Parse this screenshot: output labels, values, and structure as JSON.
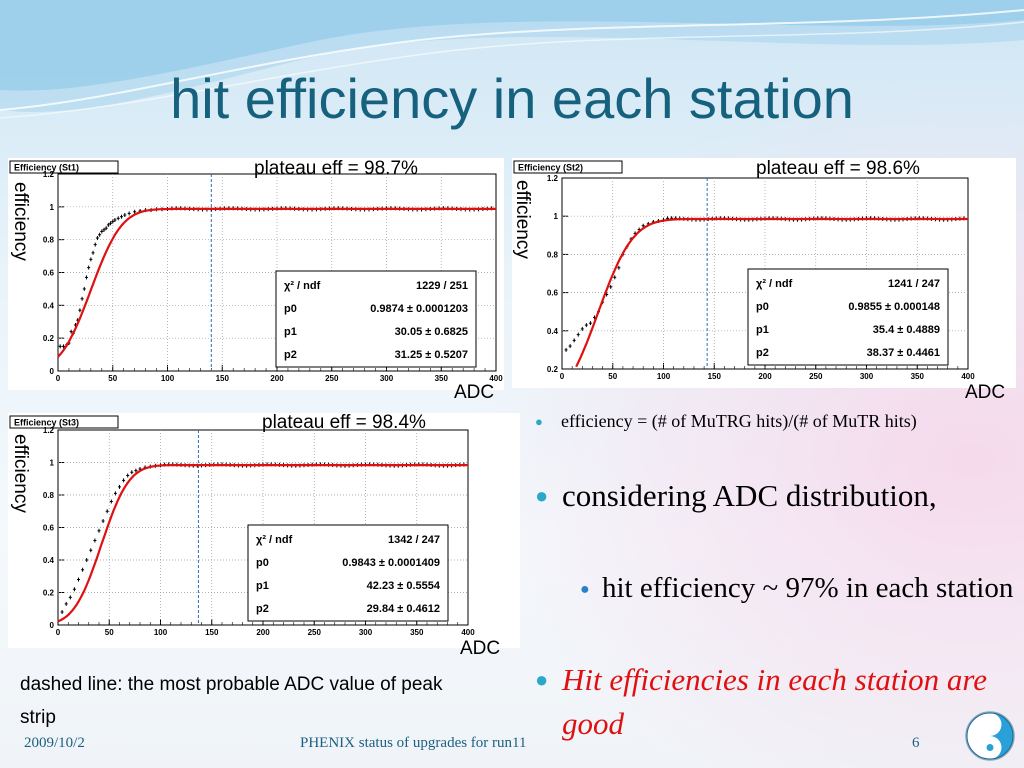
{
  "slide": {
    "title": "hit efficiency in each station",
    "note": "dashed line: the most probable ADC value of peak strip",
    "bullets": [
      "efficiency = (# of MuTRG hits)/(# of MuTR hits)",
      "considering ADC distribution,",
      "hit efficiency ~ 97% in each station",
      "Hit efficiencies in each station are good"
    ],
    "footer": {
      "date": "2009/10/2",
      "center": "PHENIX status of upgrades for run11",
      "page": "6"
    },
    "colors": {
      "title": "#16617e",
      "fit": "#e01010",
      "bullet": "#2aa8c9",
      "emphasis": "#e01010"
    }
  },
  "chart_data": [
    {
      "type": "scatter",
      "title": "Efficiency (St1)",
      "plateau_label": "plateau eff = 98.7%",
      "xlabel": "ADC",
      "ylabel": "efficiency",
      "xlim": [
        0,
        400
      ],
      "ylim": [
        0,
        1.2
      ],
      "xticks": [
        "0",
        "50",
        "100",
        "150",
        "200",
        "250",
        "300",
        "350",
        "400"
      ],
      "yticks": [
        "0",
        "0.2",
        "0.4",
        "0.6",
        "0.8",
        "1",
        "1.2"
      ],
      "dashed_x": 140,
      "stats": [
        [
          "χ² / ndf",
          "1229 / 251"
        ],
        [
          "p0",
          "0.9874 ± 0.0001203"
        ],
        [
          "p1",
          "30.05 ± 0.6825"
        ],
        [
          "p2",
          "31.25 ± 0.5207"
        ]
      ],
      "fit": {
        "p0": 0.9874,
        "p1": 30.05,
        "p2": 31.25
      },
      "points": {
        "x": [
          2,
          5,
          8,
          10,
          12,
          14,
          16,
          18,
          20,
          22,
          24,
          26,
          28,
          30,
          32,
          34,
          36,
          38,
          40,
          42,
          44,
          46,
          48,
          50,
          52,
          55,
          58,
          61,
          65,
          70,
          75,
          80,
          85,
          90,
          95,
          100
        ],
        "y": [
          0.15,
          0.15,
          0.16,
          0.17,
          0.24,
          0.23,
          0.28,
          0.31,
          0.37,
          0.44,
          0.5,
          0.57,
          0.63,
          0.68,
          0.72,
          0.77,
          0.81,
          0.83,
          0.85,
          0.86,
          0.87,
          0.89,
          0.9,
          0.91,
          0.92,
          0.93,
          0.94,
          0.95,
          0.96,
          0.97,
          0.975,
          0.98,
          0.98,
          0.985,
          0.985,
          0.987
        ]
      }
    },
    {
      "type": "scatter",
      "title": "Efficiency (St2)",
      "plateau_label": "plateau eff = 98.6%",
      "xlabel": "ADC",
      "ylabel": "efficiency",
      "xlim": [
        0,
        400
      ],
      "ylim": [
        0.2,
        1.2
      ],
      "xticks": [
        "0",
        "50",
        "100",
        "150",
        "200",
        "250",
        "300",
        "350",
        "400"
      ],
      "yticks": [
        "0.2",
        "0.4",
        "0.6",
        "0.8",
        "1",
        "1.2"
      ],
      "dashed_x": 143,
      "stats": [
        [
          "χ² / ndf",
          "1241 / 247"
        ],
        [
          "p0",
          "0.9855 ± 0.000148"
        ],
        [
          "p1",
          "35.4 ± 0.4889"
        ],
        [
          "p2",
          "38.37 ± 0.4461"
        ]
      ],
      "fit": {
        "p0": 0.9855,
        "p1": 35.4,
        "p2": 38.37
      },
      "points": {
        "x": [
          4,
          8,
          12,
          16,
          20,
          24,
          28,
          32,
          36,
          40,
          44,
          48,
          52,
          56,
          60,
          64,
          68,
          72,
          76,
          80,
          85,
          90,
          95,
          100
        ],
        "y": [
          0.3,
          0.32,
          0.35,
          0.38,
          0.41,
          0.43,
          0.44,
          0.47,
          0.5,
          0.55,
          0.59,
          0.63,
          0.68,
          0.73,
          0.8,
          0.84,
          0.88,
          0.91,
          0.93,
          0.95,
          0.96,
          0.97,
          0.975,
          0.98
        ]
      }
    },
    {
      "type": "scatter",
      "title": "Efficiency (St3)",
      "plateau_label": "plateau eff = 98.4%",
      "xlabel": "ADC",
      "ylabel": "efficiency",
      "xlim": [
        0,
        400
      ],
      "ylim": [
        0,
        1.2
      ],
      "xticks": [
        "0",
        "50",
        "100",
        "150",
        "200",
        "250",
        "300",
        "350",
        "400"
      ],
      "yticks": [
        "0",
        "0.2",
        "0.4",
        "0.6",
        "0.8",
        "1",
        "1.2"
      ],
      "dashed_x": 137,
      "stats": [
        [
          "χ² / ndf",
          "1342 / 247"
        ],
        [
          "p0",
          "0.9843 ± 0.0001409"
        ],
        [
          "p1",
          "42.23 ± 0.5554"
        ],
        [
          "p2",
          "29.84 ± 0.4612"
        ]
      ],
      "fit": {
        "p0": 0.9843,
        "p1": 42.23,
        "p2": 29.84
      },
      "points": {
        "x": [
          4,
          8,
          12,
          16,
          20,
          24,
          28,
          32,
          36,
          40,
          44,
          48,
          52,
          56,
          60,
          64,
          68,
          72,
          76,
          80,
          85,
          90,
          95,
          100
        ],
        "y": [
          0.08,
          0.13,
          0.17,
          0.22,
          0.28,
          0.34,
          0.4,
          0.46,
          0.52,
          0.58,
          0.64,
          0.7,
          0.76,
          0.81,
          0.85,
          0.89,
          0.92,
          0.94,
          0.95,
          0.96,
          0.97,
          0.975,
          0.98,
          0.982
        ]
      }
    }
  ]
}
